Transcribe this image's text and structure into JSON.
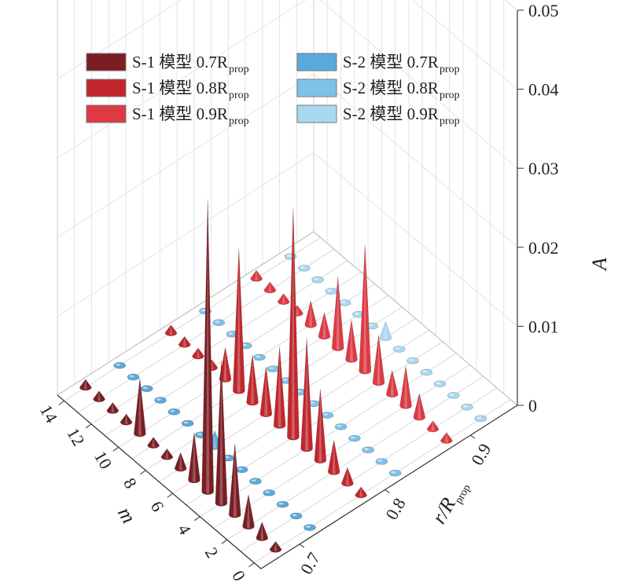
{
  "chart_data": {
    "type": "3d-cone",
    "xlabel": {
      "main": "r/R",
      "sub": "prop"
    },
    "ylabel": "m",
    "zlabel": "A",
    "x_ticks": [
      "0.7",
      "0.8",
      "0.9"
    ],
    "y_ticks": [
      "0",
      "2",
      "4",
      "6",
      "8",
      "10",
      "12",
      "14"
    ],
    "z_ticks": [
      "0",
      "0.01",
      "0.02",
      "0.03",
      "0.04",
      "0.05"
    ],
    "zlim": [
      0,
      0.05
    ],
    "legend_placement": "top-left",
    "series": [
      {
        "label_main": "S-1 模型 0.7R",
        "label_sub": "prop",
        "color": "#7a1e24",
        "r": 0.7,
        "values": [
          0.001,
          0.002,
          0.004,
          0.009,
          0.018,
          0.037,
          0.006,
          0.002,
          0.001,
          0.001,
          0.007,
          0.001,
          0.001,
          0.001,
          0.001
        ]
      },
      {
        "label_main": "S-1 模型 0.8R",
        "label_sub": "prop",
        "color": "#c1272d",
        "r": 0.8,
        "values": [
          0.001,
          0.002,
          0.004,
          0.009,
          0.014,
          0.029,
          0.01,
          0.006,
          0.006,
          0.018,
          0.004,
          0.001,
          0.001,
          0.001,
          0.001
        ]
      },
      {
        "label_main": "S-1 模型 0.9R",
        "label_sub": "prop",
        "color": "#dd3a44",
        "r": 0.9,
        "values": [
          0.001,
          0.001,
          0.003,
          0.005,
          0.003,
          0.006,
          0.016,
          0.005,
          0.009,
          0.003,
          0.003,
          0.001,
          0.001,
          0.001,
          0.001
        ]
      },
      {
        "label_main": "S-2 模型 0.7R",
        "label_sub": "prop",
        "color": "#5aa9dc",
        "r": 0.7,
        "values": [
          0.0004,
          0.0004,
          0.0004,
          0.0004,
          0.0004,
          0.0004,
          0.0004,
          0.002,
          0.0004,
          0.0004,
          0.0004,
          0.0004,
          0.0004,
          0.0004,
          0.0004
        ]
      },
      {
        "label_main": "S-2 模型 0.8R",
        "label_sub": "prop",
        "color": "#7ec2ea",
        "r": 0.8,
        "values": [
          0.0004,
          0.0004,
          0.0004,
          0.0004,
          0.0004,
          0.0004,
          0.0004,
          0.0004,
          0.0004,
          0.0004,
          0.0004,
          0.0004,
          0.0004,
          0.0004,
          0.0004
        ]
      },
      {
        "label_main": "S-2 模型 0.9R",
        "label_sub": "prop",
        "color": "#a9d9f2",
        "r": 0.9,
        "values": [
          0.0004,
          0.0004,
          0.0004,
          0.0004,
          0.0004,
          0.0004,
          0.0004,
          0.002,
          0.0004,
          0.0004,
          0.0004,
          0.0004,
          0.0004,
          0.0004,
          0.0004
        ]
      }
    ]
  }
}
